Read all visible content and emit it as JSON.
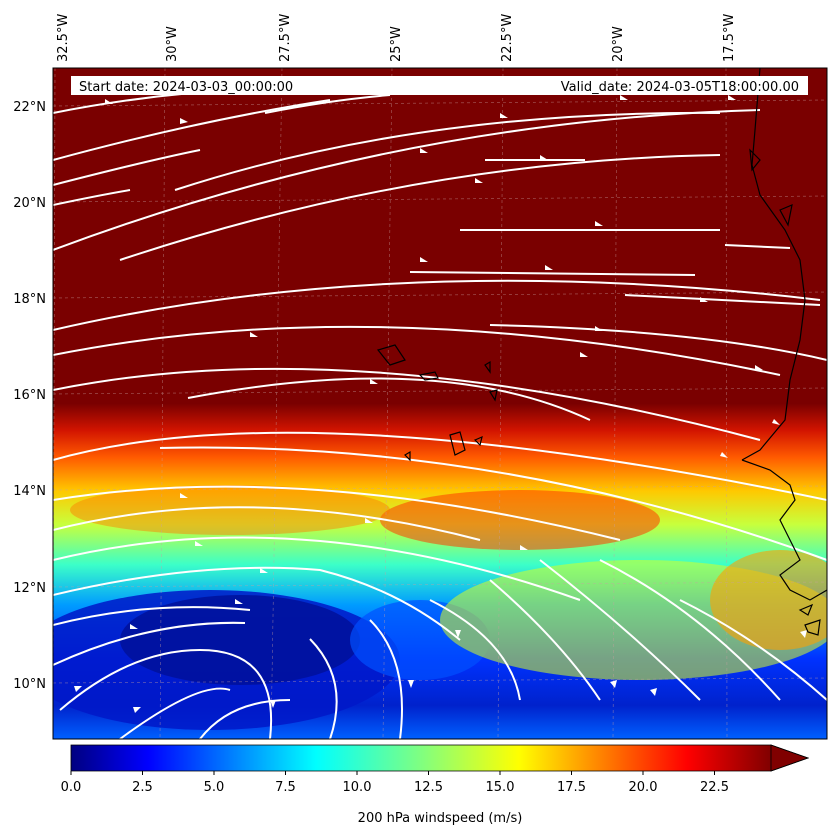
{
  "map": {
    "start_date_label": "Start date: 2024-03-03_00:00:00",
    "valid_date_label": "Valid_date: 2024-03-05T18:00:00.00",
    "longitude_labels": [
      "32.5°W",
      "30°W",
      "27.5°W",
      "25°W",
      "22.5°W",
      "20°W",
      "17.5°W"
    ],
    "latitude_labels": [
      "22°N",
      "20°N",
      "18°N",
      "16°N",
      "14°N",
      "12°N",
      "10°N"
    ],
    "field": "200 hPa windspeed",
    "streamline_color": "#ffffff",
    "coastline_color": "#000000",
    "extent": {
      "lon": [
        -33,
        -15.5
      ],
      "lat": [
        9,
        22.8
      ]
    }
  },
  "colorbar": {
    "label": "200 hPa windspeed (m/s)",
    "ticks": [
      "0.0",
      "2.5",
      "5.0",
      "7.5",
      "10.0",
      "12.5",
      "15.0",
      "17.5",
      "20.0",
      "22.5"
    ],
    "range": [
      0,
      25
    ],
    "colormap": "jet",
    "extend": "max"
  }
}
